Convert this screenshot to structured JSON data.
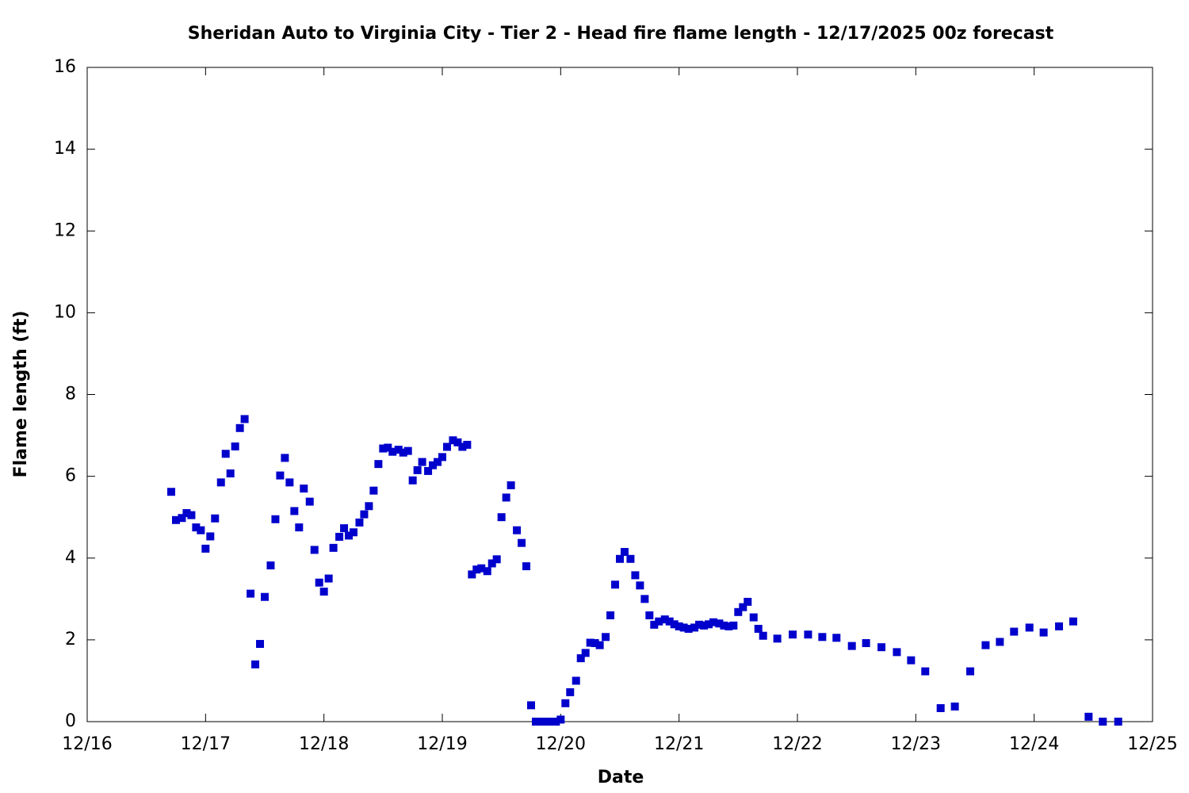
{
  "chart_data": {
    "type": "scatter",
    "title": "Sheridan Auto to Virginia City - Tier 2 - Head fire flame length - 12/17/2025 00z forecast",
    "x_label": "Date",
    "y_label": "Flame length (ft)",
    "color": "#0000cc",
    "xlim": [
      0,
      9
    ],
    "xticks": [
      {
        "value": 0,
        "label": "12/16"
      },
      {
        "value": 1,
        "label": "12/17"
      },
      {
        "value": 2,
        "label": "12/18"
      },
      {
        "value": 3,
        "label": "12/19"
      },
      {
        "value": 4,
        "label": "12/20"
      },
      {
        "value": 5,
        "label": "12/21"
      },
      {
        "value": 6,
        "label": "12/22"
      },
      {
        "value": 7,
        "label": "12/23"
      },
      {
        "value": 8,
        "label": "12/24"
      },
      {
        "value": 9,
        "label": "12/25"
      }
    ],
    "ylim": [
      0,
      16
    ],
    "yticks": [
      0,
      2,
      4,
      6,
      8,
      10,
      12,
      14,
      16
    ],
    "x": [
      0.71,
      0.75,
      0.8,
      0.84,
      0.88,
      0.92,
      0.96,
      1.0,
      1.04,
      1.08,
      1.13,
      1.17,
      1.21,
      1.25,
      1.29,
      1.33,
      1.38,
      1.42,
      1.46,
      1.5,
      1.55,
      1.59,
      1.63,
      1.67,
      1.71,
      1.75,
      1.79,
      1.83,
      1.88,
      1.92,
      1.96,
      2.0,
      2.04,
      2.08,
      2.13,
      2.17,
      2.21,
      2.25,
      2.3,
      2.34,
      2.38,
      2.42,
      2.46,
      2.5,
      2.54,
      2.58,
      2.63,
      2.67,
      2.71,
      2.75,
      2.79,
      2.83,
      2.88,
      2.92,
      2.96,
      3.0,
      3.04,
      3.09,
      3.13,
      3.17,
      3.21,
      3.25,
      3.29,
      3.33,
      3.38,
      3.42,
      3.46,
      3.5,
      3.54,
      3.58,
      3.63,
      3.67,
      3.71,
      3.75,
      3.79,
      3.83,
      3.87,
      3.91,
      3.96,
      4.0,
      4.04,
      4.08,
      4.13,
      4.17,
      4.21,
      4.25,
      4.29,
      4.33,
      4.38,
      4.42,
      4.46,
      4.5,
      4.54,
      4.59,
      4.63,
      4.67,
      4.71,
      4.75,
      4.79,
      4.83,
      4.88,
      4.92,
      4.96,
      5.0,
      5.04,
      5.08,
      5.13,
      5.17,
      5.21,
      5.25,
      5.29,
      5.34,
      5.38,
      5.42,
      5.46,
      5.5,
      5.54,
      5.58,
      5.63,
      5.67,
      5.71,
      5.83,
      5.96,
      6.09,
      6.21,
      6.33,
      6.46,
      6.58,
      6.71,
      6.84,
      6.96,
      7.08,
      7.21,
      7.33,
      7.46,
      7.59,
      7.71,
      7.83,
      7.96,
      8.08,
      8.21,
      8.33,
      8.46,
      8.58,
      8.71
    ],
    "values": [
      5.62,
      4.93,
      4.98,
      5.1,
      5.05,
      4.75,
      4.68,
      4.23,
      4.53,
      4.97,
      5.85,
      6.55,
      6.07,
      6.73,
      7.18,
      7.4,
      3.13,
      1.4,
      1.9,
      3.05,
      3.82,
      4.95,
      6.02,
      6.45,
      5.85,
      5.15,
      4.75,
      5.7,
      5.38,
      4.2,
      3.4,
      3.18,
      3.5,
      4.25,
      4.52,
      4.73,
      4.55,
      4.63,
      4.87,
      5.07,
      5.27,
      5.65,
      6.3,
      6.68,
      6.7,
      6.6,
      6.65,
      6.58,
      6.62,
      5.9,
      6.15,
      6.35,
      6.13,
      6.27,
      6.35,
      6.47,
      6.72,
      6.88,
      6.83,
      6.72,
      6.77,
      3.6,
      3.72,
      3.75,
      3.68,
      3.87,
      3.97,
      5.0,
      5.48,
      5.78,
      4.68,
      4.37,
      3.8,
      0.4,
      0,
      0,
      0,
      0,
      0,
      0.05,
      0.45,
      0.72,
      1.0,
      1.55,
      1.68,
      1.93,
      1.92,
      1.87,
      2.07,
      2.6,
      3.35,
      3.98,
      4.15,
      3.98,
      3.58,
      3.33,
      3.0,
      2.6,
      2.37,
      2.45,
      2.5,
      2.45,
      2.38,
      2.33,
      2.3,
      2.27,
      2.3,
      2.37,
      2.35,
      2.38,
      2.43,
      2.4,
      2.35,
      2.33,
      2.35,
      2.68,
      2.8,
      2.93,
      2.55,
      2.27,
      2.1,
      2.03,
      2.13,
      2.13,
      2.07,
      2.05,
      1.85,
      1.92,
      1.82,
      1.7,
      1.5,
      1.23,
      0.33,
      0.37,
      1.23,
      1.87,
      1.95,
      2.2,
      2.3,
      2.18,
      2.33,
      2.45,
      0.12,
      0,
      0
    ]
  }
}
